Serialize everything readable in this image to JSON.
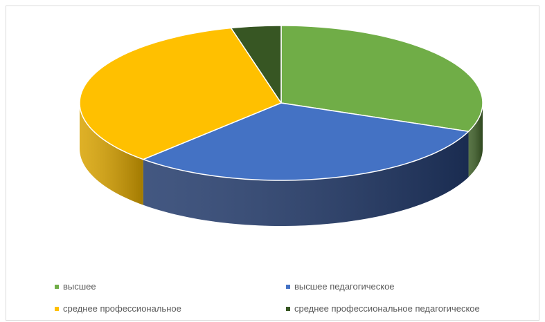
{
  "chart_data": {
    "type": "pie",
    "style": "3d",
    "title": "",
    "legend_position": "bottom",
    "series": [
      {
        "name": "высшее",
        "value": 31,
        "color": "#70ad47",
        "side_color": "#3d5e27"
      },
      {
        "name": "высшее педагогическое",
        "value": 31,
        "color": "#4472c4",
        "side_color": "#223a6b"
      },
      {
        "name": "среднее профессиональное",
        "value": 34,
        "color": "#ffc000",
        "side_color": "#d9a300"
      },
      {
        "name": "среднее профессиональное педагогическое",
        "value": 4,
        "color": "#375623",
        "side_color": "#22361a"
      }
    ]
  }
}
